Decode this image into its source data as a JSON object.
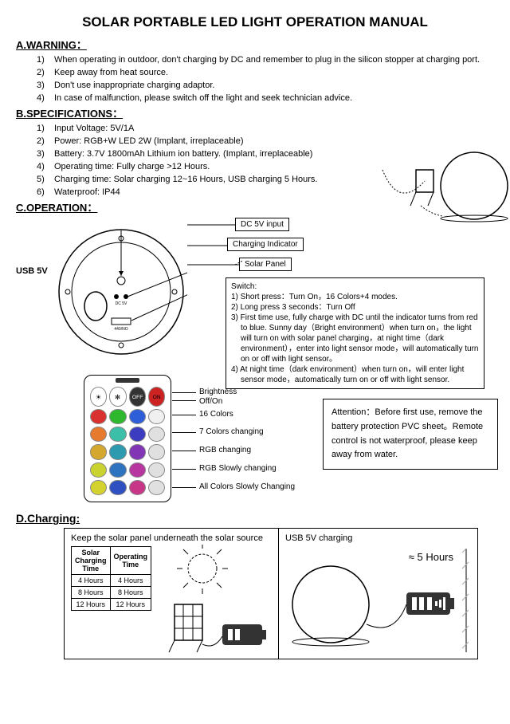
{
  "title": "SOLAR PORTABLE LED LIGHT OPERATION MANUAL",
  "sections": {
    "a": {
      "header": "A.WARNING：",
      "items": [
        "When operating in outdoor, don't charging by DC and remember to plug in the silicon stopper at charging port.",
        "Keep away from heat source.",
        "Don't use inappropriate charging adaptor.",
        "In case of malfunction, please switch off the light and seek technician advice."
      ]
    },
    "b": {
      "header": "B.SPECIFICATIONS：",
      "items": [
        "Input Voltage: 5V/1A",
        "Power: RGB+W LED 2W (Implant, irreplaceable)",
        "Battery: 3.7V 1800mAh Lithium ion battery. (Implant, irreplaceable)",
        "Operating time: Fully charge >12 Hours.",
        "Charging time: Solar charging 12~16 Hours, USB charging 5 Hours.",
        "Waterproof: IP44"
      ]
    },
    "c": {
      "header": "C.OPERATION："
    },
    "d": {
      "header": "D.Charging:"
    }
  },
  "operation": {
    "usb_label": "USB 5V",
    "labels": {
      "dc": "DC 5V input",
      "indicator": "Charging Indicator",
      "panel": "Solar Panel"
    },
    "switch_title": "Switch:",
    "switch_lines": [
      "1) Short press：Turn On，16 Colors+4 modes.",
      "2) Long press 3 seconds：Turn Off",
      "3) First time use, fully charge with DC until the indicator turns from red to blue. Sunny day（Bright environment）when turn on，the light will turn on with solar panel charging，at night time（dark environment），enter into light sensor mode，will automatically turn on or off with light sensor。",
      "4) At night time（dark environment）when turn on，will enter light sensor mode，automatically turn on or off with light sensor."
    ]
  },
  "remote": {
    "labels": [
      "Brightness",
      "Off/On",
      "16 Colors",
      "7 Colors changing",
      "RGB changing",
      "RGB Slowly changing",
      "All Colors Slowly Changing"
    ],
    "colors": [
      [
        "#ffffff",
        "#ffffff",
        "#333333",
        "#cc2222"
      ],
      [
        "#d93030",
        "#2eb82e",
        "#2e5fd9",
        "#f0f0f0"
      ],
      [
        "#e67a2e",
        "#3cbfa8",
        "#3c3cc0",
        "#e0e0e0"
      ],
      [
        "#d4a82e",
        "#2e9ab0",
        "#8236b5",
        "#e0e0e0"
      ],
      [
        "#c9d22e",
        "#2e73c0",
        "#b836a0",
        "#e0e0e0"
      ],
      [
        "#d4d22e",
        "#2e50c0",
        "#c83688",
        "#e0e0e0"
      ]
    ]
  },
  "attention": "Attention：Before first use, remove the battery protection PVC sheet。Remote control is not waterproof, please keep away from water.",
  "charging": {
    "panel1_title": "Keep the solar panel underneath the solar source",
    "panel2_title": "USB 5V charging",
    "panel2_time": "≈ 5 Hours",
    "table": {
      "headers": [
        "Solar Charging Time",
        "Operating Time"
      ],
      "rows": [
        [
          "4 Hours",
          "4 Hours"
        ],
        [
          "8 Hours",
          "8 Hours"
        ],
        [
          "12 Hours",
          "12 Hours"
        ]
      ]
    }
  },
  "styling": {
    "page_bg": "#ffffff",
    "text_color": "#000000",
    "font_family": "Arial",
    "base_font_size": 11,
    "title_font_size": 17,
    "section_font_size": 13
  }
}
